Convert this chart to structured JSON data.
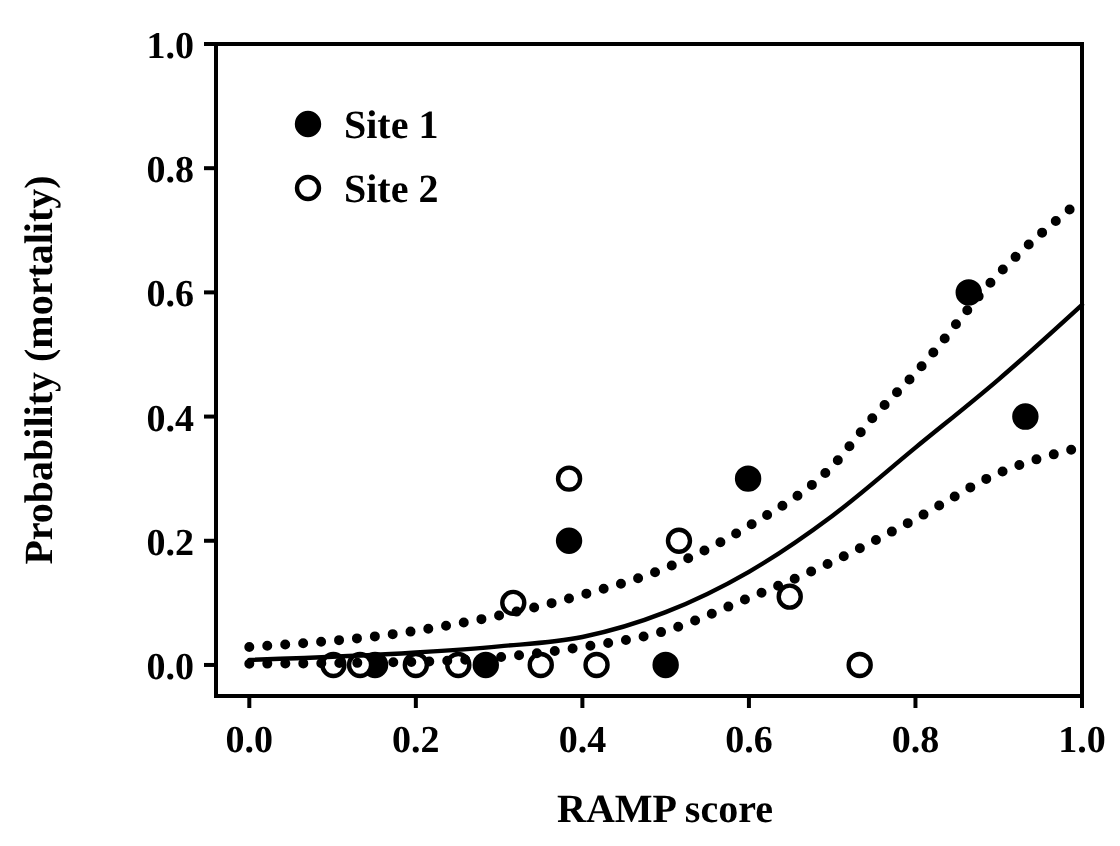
{
  "chart_data": {
    "type": "scatter",
    "xlabel": "RAMP score",
    "ylabel": "Probability (mortality)",
    "xlim": [
      -0.04,
      1
    ],
    "ylim": [
      -0.05,
      1
    ],
    "xticks": [
      {
        "value": 0,
        "label": "0.0"
      },
      0.2,
      0.4,
      0.6,
      0.8,
      {
        "value": 1,
        "label": "1.0"
      }
    ],
    "yticks": [
      {
        "value": 0,
        "label": "0.0"
      },
      0.2,
      0.4,
      0.6,
      0.8,
      {
        "value": 1,
        "label": "1.0"
      }
    ],
    "grid": false,
    "legend": "top left",
    "series": [
      {
        "name": "Site 1",
        "color": "#000000",
        "marker": "circle",
        "x": [
          0.151,
          0.284,
          0.5,
          0.384,
          0.599,
          0.932,
          0.864
        ],
        "values": [
          0,
          0,
          0,
          0.2,
          0.3,
          0.4,
          0.6
        ]
      },
      {
        "name": "Site 2",
        "color": "#ffffff",
        "marker": "circle",
        "x": [
          0.101,
          0.133,
          0.2,
          0.251,
          0.35,
          0.417,
          0.733,
          0.317,
          0.384,
          0.516,
          0.649
        ],
        "values": [
          0,
          0,
          0,
          0,
          0,
          0,
          0,
          0.1,
          0.3,
          0.2,
          0.11
        ]
      },
      {
        "type": "line",
        "color": "#000000",
        "marker": "none",
        "line_style": "solid",
        "x": [
          0,
          0.2,
          0.3,
          0.4,
          0.5,
          0.6,
          0.7,
          0.8,
          0.9,
          1
        ],
        "values": [
          0.008,
          0.02,
          0.03,
          0.045,
          0.085,
          0.15,
          0.24,
          0.35,
          0.46,
          0.58
        ]
      },
      {
        "type": "line",
        "color": "#000000",
        "marker": "none",
        "line_style": "dotted",
        "x": [
          0,
          0.2,
          0.4,
          0.5,
          0.6,
          0.7,
          0.75,
          0.8,
          0.9,
          1
        ],
        "values": [
          0.029,
          0.055,
          0.113,
          0.156,
          0.224,
          0.32,
          0.4,
          0.47,
          0.63,
          0.75
        ]
      },
      {
        "type": "line",
        "color": "#000000",
        "marker": "none",
        "line_style": "dotted",
        "x": [
          0,
          0.2,
          0.4,
          0.5,
          0.6,
          0.7,
          0.8,
          0.9,
          1
        ],
        "values": [
          0.002,
          0.005,
          0.029,
          0.055,
          0.108,
          0.166,
          0.235,
          0.309,
          0.351
        ]
      }
    ]
  }
}
